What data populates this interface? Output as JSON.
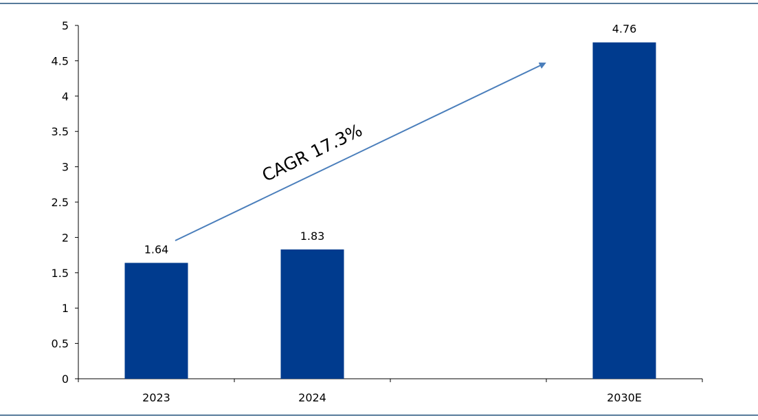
{
  "chart_data": {
    "type": "bar",
    "categories": [
      "2023",
      "2024",
      "",
      "2030E"
    ],
    "values": [
      1.64,
      1.83,
      null,
      4.76
    ],
    "data_labels": [
      "1.64",
      "1.83",
      "",
      "4.76"
    ],
    "ylim": [
      0,
      5
    ],
    "yticks": [
      0,
      0.5,
      1,
      1.5,
      2,
      2.5,
      3,
      3.5,
      4,
      4.5,
      5
    ],
    "ytick_labels": [
      "0",
      "0.5",
      "1",
      "1.5",
      "2",
      "2.5",
      "3",
      "3.5",
      "4",
      "4.5",
      "5"
    ],
    "grid": false,
    "bar_color": "#003B8E",
    "annotation": {
      "text": "CAGR 17.3%",
      "arrow_color": "#4A7EBB"
    },
    "frame_line_color": "#1F4E79"
  }
}
